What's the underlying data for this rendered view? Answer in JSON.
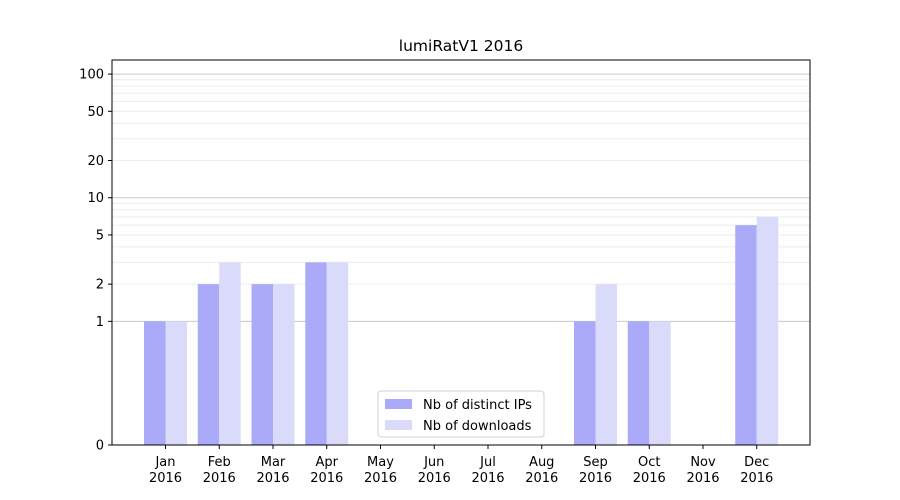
{
  "chart_data": {
    "type": "bar",
    "title": "lumiRatV1 2016",
    "xlabel": "",
    "ylabel": "",
    "yscale": "symlog",
    "ylim": [
      0,
      130
    ],
    "yticks": [
      0,
      1,
      2,
      5,
      10,
      20,
      50,
      100
    ],
    "categories": [
      [
        "Jan",
        "2016"
      ],
      [
        "Feb",
        "2016"
      ],
      [
        "Mar",
        "2016"
      ],
      [
        "Apr",
        "2016"
      ],
      [
        "May",
        "2016"
      ],
      [
        "Jun",
        "2016"
      ],
      [
        "Jul",
        "2016"
      ],
      [
        "Aug",
        "2016"
      ],
      [
        "Sep",
        "2016"
      ],
      [
        "Oct",
        "2016"
      ],
      [
        "Nov",
        "2016"
      ],
      [
        "Dec",
        "2016"
      ]
    ],
    "series": [
      {
        "name": "Nb of distinct IPs",
        "color": "#aaaaf9",
        "values": [
          1,
          2,
          2,
          3,
          0,
          0,
          0,
          0,
          1,
          1,
          0,
          6
        ]
      },
      {
        "name": "Nb of downloads",
        "color": "#dadbfb",
        "values": [
          1,
          3,
          2,
          3,
          0,
          0,
          0,
          0,
          2,
          1,
          0,
          7
        ]
      }
    ],
    "grid": true,
    "legend_position": "lower center"
  }
}
